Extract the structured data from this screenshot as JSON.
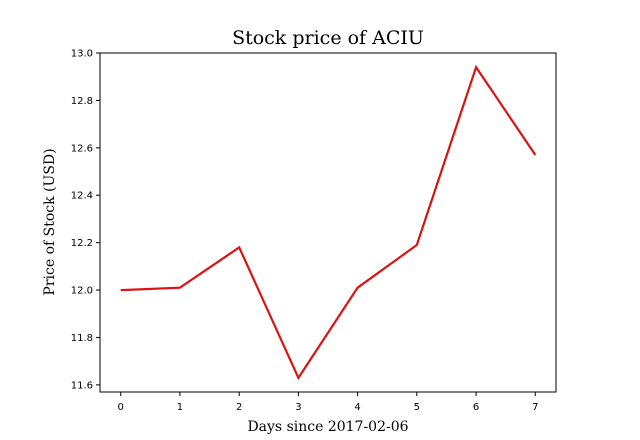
{
  "chart_data": {
    "type": "line",
    "title": "Stock price of ACIU",
    "xlabel": "Days since 2017-02-06",
    "ylabel": "Price of Stock (USD)",
    "x": [
      0,
      1,
      2,
      3,
      4,
      5,
      6,
      7
    ],
    "x_ticks": [
      "0",
      "1",
      "2",
      "3",
      "4",
      "5",
      "6",
      "7"
    ],
    "y_ticks": [
      "11.6",
      "11.8",
      "12.0",
      "12.2",
      "12.4",
      "12.6",
      "12.8",
      "13.0"
    ],
    "xlim": [
      -0.35,
      7.35
    ],
    "ylim": [
      11.57,
      13.0
    ],
    "grid": false,
    "series": [
      {
        "values": [
          12.0,
          12.01,
          12.18,
          11.63,
          12.01,
          12.19,
          12.94,
          12.57
        ],
        "color": "#dd1111"
      }
    ]
  }
}
